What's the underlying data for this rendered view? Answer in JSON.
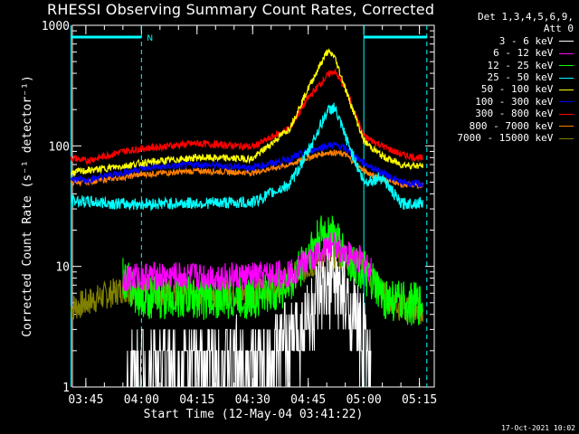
{
  "chart_data": {
    "type": "line",
    "title": "RHESSI Observing Summary Count Rates, Corrected",
    "xlabel": "Start Time (12-May-04 03:41:22)",
    "ylabel": "Corrected Count Rate (s⁻¹ detector⁻¹)",
    "yscale": "log",
    "ylim": [
      1,
      1000
    ],
    "xlim": [
      "03:41:22",
      "05:19:00"
    ],
    "x_ticks": [
      "03:45",
      "04:00",
      "04:15",
      "04:30",
      "04:45",
      "05:00",
      "05:15"
    ],
    "y_ticks": [
      "1",
      "10",
      "100",
      "1000"
    ],
    "legend_header": [
      "Det 1,3,4,5,6,9,",
      "Att 0"
    ],
    "legend_position": "right",
    "markers": {
      "n_label": "N",
      "night_intervals": [
        [
          "03:41",
          "04:00"
        ],
        [
          "05:00",
          "05:17"
        ]
      ],
      "solid_verticals": [
        "03:41",
        "05:00"
      ],
      "dashed_verticals": [
        "04:00",
        "05:17"
      ]
    },
    "series": [
      {
        "name": "3 - 6 keV",
        "color": "#ffffff",
        "x": [
          "03:41",
          "03:55",
          "04:00",
          "04:20",
          "04:35",
          "04:42",
          "04:47",
          "04:52",
          "04:55",
          "05:00",
          "05:02"
        ],
        "y": [
          null,
          1.0,
          1.5,
          1.6,
          1.6,
          2.8,
          4.5,
          7.5,
          5,
          2.5,
          1.3
        ]
      },
      {
        "name": "6 - 12 keV",
        "color": "#ff00ff",
        "x": [
          "03:55",
          "04:00",
          "04:30",
          "04:40",
          "04:45",
          "04:50",
          "04:52",
          "04:55",
          "05:00",
          "05:02"
        ],
        "y": [
          8,
          8.3,
          8.2,
          8.8,
          11,
          14,
          15,
          13,
          11,
          9
        ]
      },
      {
        "name": "12 - 25 keV",
        "color": "#00ff00",
        "x": [
          "03:55",
          "04:00",
          "04:30",
          "04:40",
          "04:45",
          "04:50",
          "04:52",
          "04:55",
          "05:00",
          "05:05",
          "05:10",
          "05:16"
        ],
        "y": [
          8,
          5.5,
          5.4,
          7,
          13,
          20,
          18,
          12,
          9,
          5.5,
          5,
          4.8
        ]
      },
      {
        "name": "25 - 50 keV",
        "color": "#00ffff",
        "x": [
          "03:41",
          "03:55",
          "04:00",
          "04:30",
          "04:40",
          "04:45",
          "04:50",
          "04:52",
          "04:55",
          "05:00",
          "05:05",
          "05:10",
          "05:16"
        ],
        "y": [
          35,
          33,
          33,
          34,
          48,
          90,
          190,
          210,
          120,
          50,
          55,
          33,
          34
        ]
      },
      {
        "name": "50 - 100 keV",
        "color": "#ffff00",
        "x": [
          "03:41",
          "03:45",
          "03:55",
          "04:00",
          "04:15",
          "04:30",
          "04:40",
          "04:45",
          "04:50",
          "04:52",
          "04:55",
          "05:00",
          "05:05",
          "05:10",
          "05:16"
        ],
        "y": [
          60,
          62,
          68,
          72,
          80,
          78,
          140,
          300,
          600,
          560,
          300,
          110,
          82,
          70,
          68
        ]
      },
      {
        "name": "100 - 300 keV",
        "color": "#0000ff",
        "x": [
          "03:41",
          "03:45",
          "03:55",
          "04:00",
          "04:15",
          "04:30",
          "04:40",
          "04:45",
          "04:50",
          "04:52",
          "04:55",
          "05:00",
          "05:05",
          "05:10",
          "05:16"
        ],
        "y": [
          54,
          52,
          60,
          65,
          70,
          66,
          78,
          90,
          100,
          102,
          95,
          72,
          60,
          50,
          48
        ]
      },
      {
        "name": "300 - 800 keV",
        "color": "#ff0000",
        "x": [
          "03:41",
          "03:45",
          "03:55",
          "04:00",
          "04:15",
          "04:30",
          "04:40",
          "04:45",
          "04:50",
          "04:52",
          "04:55",
          "05:00",
          "05:05",
          "05:10",
          "05:16"
        ],
        "y": [
          80,
          75,
          90,
          95,
          105,
          98,
          140,
          250,
          380,
          420,
          300,
          120,
          100,
          85,
          78
        ]
      },
      {
        "name": "800 - 7000 keV",
        "color": "#ff8000",
        "x": [
          "03:41",
          "03:45",
          "03:55",
          "04:00",
          "04:15",
          "04:30",
          "04:40",
          "04:45",
          "04:50",
          "04:52",
          "04:55",
          "05:00",
          "05:05",
          "05:10",
          "05:16"
        ],
        "y": [
          50,
          50,
          55,
          58,
          62,
          60,
          70,
          80,
          88,
          88,
          85,
          62,
          53,
          48,
          47
        ]
      },
      {
        "name": "7000 - 15000 keV",
        "color": "#808000",
        "x": [
          "03:41",
          "03:55",
          "04:00",
          "04:30",
          "04:40",
          "04:45",
          "04:50",
          "04:52",
          "04:55",
          "05:00",
          "05:05",
          "05:10",
          "05:16"
        ],
        "y": [
          4.5,
          6.5,
          6.2,
          6.0,
          8,
          10,
          12,
          12,
          12,
          10,
          6,
          4.5,
          4.3
        ]
      }
    ]
  },
  "footer": {
    "timestamp": "17-Oct-2021 10:02"
  }
}
